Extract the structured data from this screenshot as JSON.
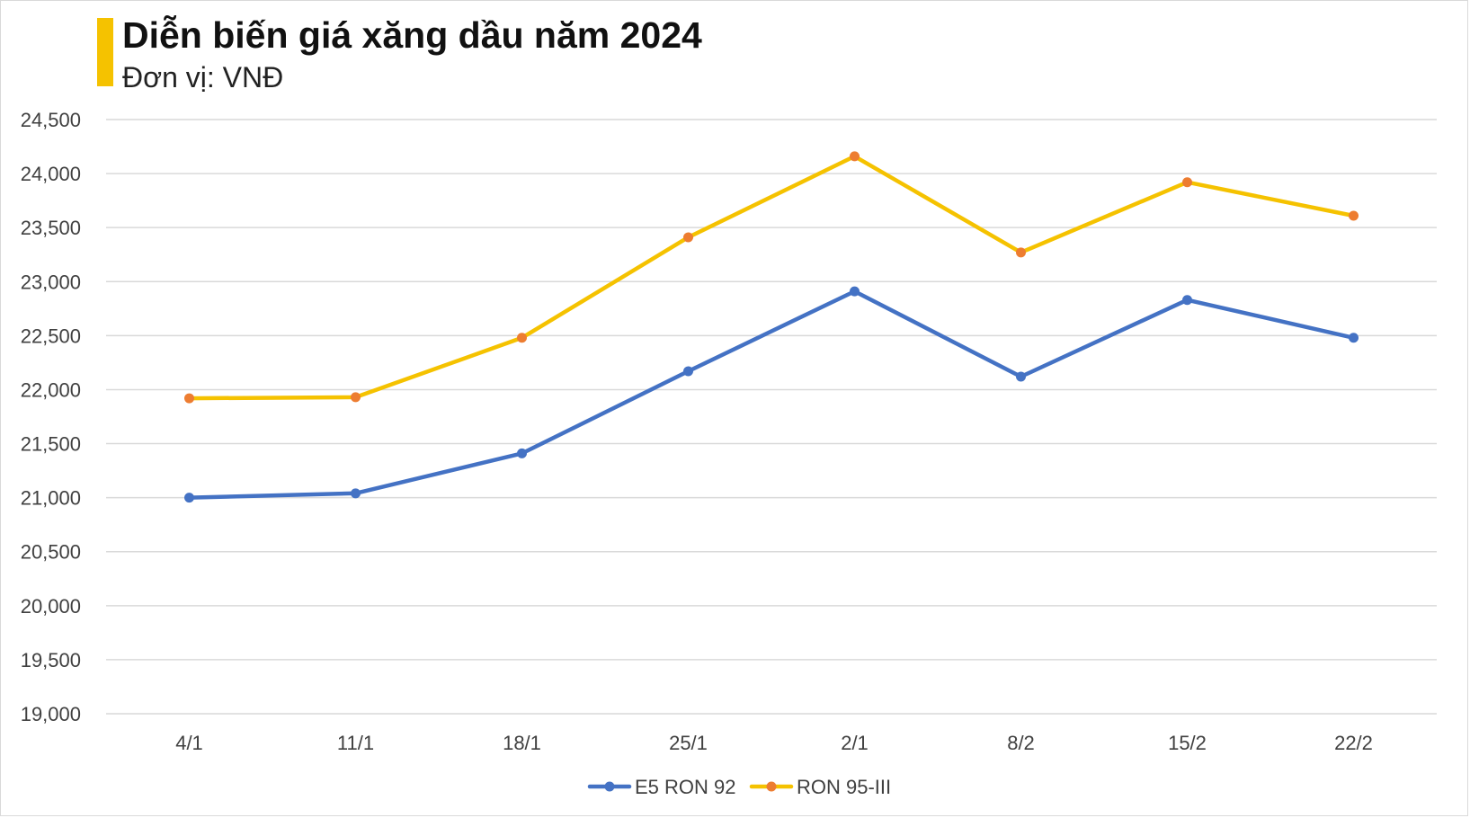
{
  "header": {
    "title": "Diễn biến giá xăng dầu năm 2024",
    "subtitle": "Đơn vị: VNĐ"
  },
  "colors": {
    "accent": "#F5C200",
    "e5": "#4472C4",
    "ron95_line": "#F5C200",
    "ron95_marker": "#ED7D31",
    "grid": "#d9d9d9"
  },
  "chart_data": {
    "type": "line",
    "title": "Diễn biến giá xăng dầu năm 2024",
    "subtitle": "Đơn vị: VNĐ",
    "xlabel": "",
    "ylabel": "",
    "categories": [
      "4/1",
      "11/1",
      "18/1",
      "25/1",
      "2/1",
      "8/2",
      "15/2",
      "22/2"
    ],
    "ylim": [
      19000,
      24500
    ],
    "yticks": [
      19000,
      19500,
      20000,
      20500,
      21000,
      21500,
      22000,
      22500,
      23000,
      23500,
      24000,
      24500
    ],
    "ytick_labels": [
      "19,000",
      "19,500",
      "20,000",
      "20,500",
      "21,000",
      "21,500",
      "22,000",
      "22,500",
      "23,000",
      "23,500",
      "24,000",
      "24,500"
    ],
    "grid": true,
    "legend_position": "bottom",
    "series": [
      {
        "name": "E5 RON 92",
        "values": [
          21000,
          21040,
          21410,
          22170,
          22910,
          22120,
          22830,
          22480
        ]
      },
      {
        "name": "RON 95-III",
        "values": [
          21920,
          21930,
          22480,
          23410,
          24160,
          23270,
          23920,
          23610
        ]
      }
    ]
  }
}
